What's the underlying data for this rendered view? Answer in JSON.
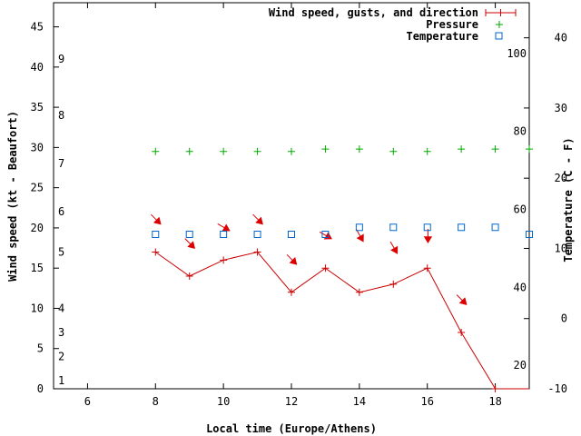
{
  "chart_data": {
    "type": "line",
    "title": "",
    "xlabel": "Local time (Europe/Athens)",
    "ylabel": "Wind speed (kt - Beaufort)",
    "y2label": "Temperature (C - F)",
    "xlim": [
      5,
      19
    ],
    "ylim": [
      0,
      48
    ],
    "y2lim": [
      -10,
      45
    ],
    "x_ticks": [
      "6",
      "8",
      "10",
      "12",
      "14",
      "16",
      "18"
    ],
    "x_tick_values": [
      6,
      8,
      10,
      12,
      14,
      16,
      18
    ],
    "y_ticks": [
      "0",
      "5",
      "10",
      "15",
      "20",
      "25",
      "30",
      "35",
      "40",
      "45"
    ],
    "y_tick_values": [
      0,
      5,
      10,
      15,
      20,
      25,
      30,
      35,
      40,
      45
    ],
    "beaufort_ticks": [
      "1",
      "2",
      "3",
      "4",
      "5",
      "6",
      "7",
      "8",
      "9"
    ],
    "beaufort_tick_values": [
      1,
      4,
      7,
      10,
      17,
      22,
      28,
      34,
      41
    ],
    "y2_ticks": [
      "-10",
      "0",
      "10",
      "20",
      "30",
      "40"
    ],
    "y2_tick_values": [
      -10,
      0,
      10,
      20,
      30,
      40
    ],
    "fahrenheit_ticks": [
      "20",
      "40",
      "60",
      "80",
      "100"
    ],
    "fahrenheit_tick_values": [
      20,
      40,
      60,
      80,
      100
    ],
    "series": [
      {
        "name": "Wind speed, gusts, and direction",
        "color": "#cc0000",
        "x": [
          8,
          9,
          10,
          11,
          12,
          13,
          14,
          15,
          16,
          17,
          18,
          19
        ],
        "values": [
          17,
          14,
          16,
          17,
          12,
          15,
          12,
          13,
          15,
          7,
          0,
          0
        ],
        "gust_arrow_y": [
          21,
          18,
          20,
          21,
          16,
          19,
          19,
          17.5,
          19,
          11,
          null,
          null
        ],
        "direction_deg": [
          315,
          315,
          300,
          315,
          315,
          300,
          330,
          330,
          0,
          315,
          null,
          null
        ]
      },
      {
        "name": "Pressure",
        "color": "#00aa00",
        "x": [
          8,
          9,
          10,
          11,
          12,
          13,
          14,
          15,
          16,
          17,
          18,
          19
        ],
        "values": [
          29.5,
          29.5,
          29.5,
          29.5,
          29.5,
          29.8,
          29.8,
          29.5,
          29.5,
          29.8,
          29.8,
          29.8
        ]
      },
      {
        "name": "Temperature",
        "color": "#0066cc",
        "x": [
          8,
          9,
          10,
          11,
          12,
          13,
          14,
          15,
          16,
          17,
          18,
          19
        ],
        "values": [
          12,
          12,
          12,
          12,
          12,
          12,
          13,
          13,
          13,
          13,
          13,
          12
        ]
      }
    ],
    "legend_position": "top-right"
  }
}
